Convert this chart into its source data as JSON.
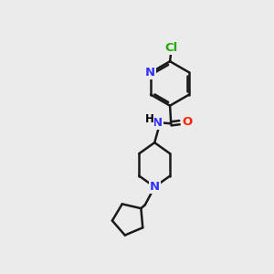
{
  "bg_color": "#ebebeb",
  "atom_colors": {
    "C": "#000000",
    "N": "#3333ff",
    "O": "#ff2200",
    "Cl": "#22aa00",
    "H": "#000000"
  },
  "bond_color": "#1a1a1a",
  "bond_width": 1.8,
  "font_size": 9.5,
  "figsize": [
    3.0,
    3.0
  ],
  "dpi": 100
}
